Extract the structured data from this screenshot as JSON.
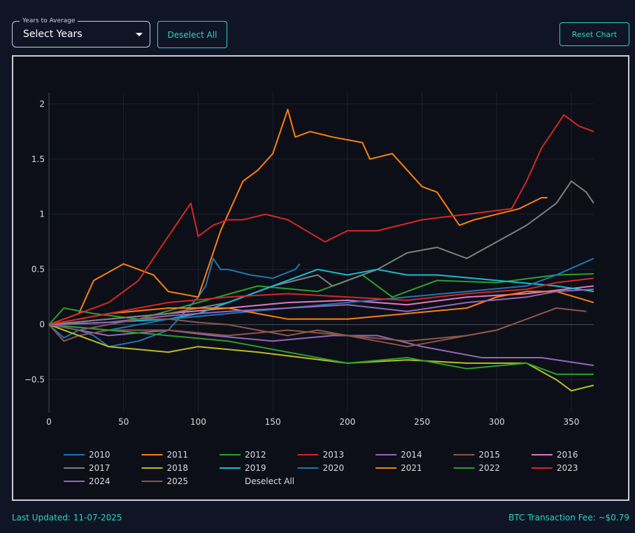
{
  "controls": {
    "years_label": "Years to Average",
    "years_value": "Select Years",
    "deselect_all": "Deselect All",
    "reset_chart": "Reset Chart"
  },
  "footer": {
    "last_updated_label": "Last Updated:",
    "last_updated_value": "11-07-2025",
    "fee_label": "BTC Transaction Fee:",
    "fee_value": "~$0.79"
  },
  "chart_data": {
    "type": "line",
    "title": "",
    "xlabel": "",
    "ylabel": "",
    "xlim": [
      0,
      365
    ],
    "ylim": [
      -0.8,
      2.1
    ],
    "x_ticks": [
      0,
      50,
      100,
      150,
      200,
      250,
      300,
      350
    ],
    "y_ticks": [
      -0.5,
      0,
      0.5,
      1,
      1.5,
      2
    ],
    "y_tick_labels": [
      "−0.5",
      "0",
      "0.5",
      "1",
      "1.5",
      "2"
    ],
    "grid": true,
    "legend_position": "bottom",
    "legend_extra": "Deselect All",
    "series": [
      {
        "name": "2010",
        "color": "#1f77b4",
        "x": [
          0,
          10,
          20,
          30,
          40,
          60,
          80,
          100,
          105,
          110,
          115,
          120,
          135,
          150,
          165,
          168
        ],
        "y": [
          0,
          -0.12,
          -0.05,
          -0.1,
          -0.2,
          -0.15,
          -0.05,
          0.25,
          0.35,
          0.6,
          0.5,
          0.5,
          0.45,
          0.42,
          0.5,
          0.55
        ]
      },
      {
        "name": "2011",
        "color": "#ff7f0e",
        "x": [
          0,
          20,
          30,
          50,
          60,
          70,
          80,
          100,
          115,
          130,
          140,
          150,
          160,
          165,
          175,
          190,
          210,
          215,
          230,
          240,
          250,
          260,
          275,
          285,
          300,
          315,
          330,
          334
        ],
        "y": [
          0,
          0.1,
          0.4,
          0.55,
          0.5,
          0.45,
          0.3,
          0.25,
          0.85,
          1.3,
          1.4,
          1.55,
          1.95,
          1.7,
          1.75,
          1.7,
          1.65,
          1.5,
          1.55,
          1.4,
          1.25,
          1.2,
          0.9,
          0.95,
          1.0,
          1.05,
          1.15,
          1.15
        ]
      },
      {
        "name": "2012",
        "color": "#2ca02c",
        "x": [
          0,
          10,
          30,
          60,
          100,
          140,
          180,
          210,
          230,
          260,
          300,
          340,
          365
        ],
        "y": [
          0,
          0.15,
          0.1,
          0.05,
          0.2,
          0.35,
          0.3,
          0.45,
          0.25,
          0.4,
          0.38,
          0.45,
          0.46
        ]
      },
      {
        "name": "2013",
        "color": "#d62728",
        "x": [
          0,
          20,
          40,
          60,
          80,
          95,
          100,
          110,
          120,
          130,
          145,
          160,
          185,
          200,
          220,
          250,
          280,
          310,
          320,
          330,
          345,
          355,
          365
        ],
        "y": [
          0,
          0.1,
          0.2,
          0.4,
          0.8,
          1.1,
          0.8,
          0.9,
          0.95,
          0.95,
          1.0,
          0.95,
          0.75,
          0.85,
          0.85,
          0.95,
          1.0,
          1.05,
          1.3,
          1.6,
          1.9,
          1.8,
          1.75
        ]
      },
      {
        "name": "2014",
        "color": "#9467bd",
        "x": [
          0,
          40,
          80,
          110,
          150,
          190,
          220,
          250,
          290,
          330,
          365
        ],
        "y": [
          0,
          -0.1,
          -0.05,
          -0.1,
          -0.15,
          -0.1,
          -0.1,
          -0.2,
          -0.3,
          -0.3,
          -0.37
        ]
      },
      {
        "name": "2015",
        "color": "#8c564b",
        "x": [
          0,
          10,
          20,
          40,
          80,
          120,
          160,
          200,
          240,
          280,
          300,
          320,
          340,
          360
        ],
        "y": [
          0,
          -0.15,
          -0.1,
          -0.05,
          -0.05,
          -0.1,
          -0.05,
          -0.1,
          -0.15,
          -0.1,
          -0.05,
          0.05,
          0.15,
          0.12
        ]
      },
      {
        "name": "2016",
        "color": "#e377c2",
        "x": [
          0,
          40,
          80,
          120,
          160,
          200,
          240,
          280,
          320,
          365
        ],
        "y": [
          0,
          0.05,
          0.1,
          0.15,
          0.2,
          0.22,
          0.18,
          0.25,
          0.28,
          0.35
        ]
      },
      {
        "name": "2017",
        "color": "#7f7f7f",
        "x": [
          0,
          40,
          80,
          120,
          150,
          180,
          190,
          200,
          220,
          240,
          260,
          280,
          300,
          320,
          340,
          350,
          360,
          365
        ],
        "y": [
          0,
          0.05,
          0.1,
          0.2,
          0.35,
          0.45,
          0.35,
          0.4,
          0.5,
          0.65,
          0.7,
          0.6,
          0.75,
          0.9,
          1.1,
          1.3,
          1.2,
          1.1
        ]
      },
      {
        "name": "2018",
        "color": "#bcbd22",
        "x": [
          0,
          20,
          40,
          80,
          100,
          140,
          170,
          200,
          240,
          280,
          320,
          340,
          350,
          365
        ],
        "y": [
          0,
          -0.1,
          -0.2,
          -0.25,
          -0.2,
          -0.25,
          -0.3,
          -0.35,
          -0.32,
          -0.35,
          -0.35,
          -0.5,
          -0.6,
          -0.55
        ]
      },
      {
        "name": "2019",
        "color": "#17becf",
        "x": [
          0,
          40,
          80,
          100,
          120,
          140,
          160,
          180,
          200,
          220,
          240,
          260,
          300,
          340,
          365
        ],
        "y": [
          0,
          0.02,
          0.05,
          0.1,
          0.2,
          0.3,
          0.4,
          0.5,
          0.45,
          0.5,
          0.45,
          0.45,
          0.4,
          0.35,
          0.3
        ]
      },
      {
        "name": "2020",
        "color": "#1f77b4",
        "x": [
          0,
          40,
          80,
          120,
          160,
          200,
          240,
          280,
          320,
          340,
          365
        ],
        "y": [
          0,
          -0.05,
          0.05,
          0.1,
          0.15,
          0.2,
          0.25,
          0.3,
          0.35,
          0.45,
          0.6
        ]
      },
      {
        "name": "2021",
        "color": "#ff7f0e",
        "x": [
          0,
          40,
          80,
          120,
          160,
          200,
          240,
          280,
          300,
          320,
          340,
          365
        ],
        "y": [
          0,
          0.1,
          0.15,
          0.15,
          0.05,
          0.05,
          0.1,
          0.15,
          0.25,
          0.3,
          0.3,
          0.2
        ]
      },
      {
        "name": "2022",
        "color": "#2ca02c",
        "x": [
          0,
          40,
          80,
          120,
          160,
          200,
          240,
          280,
          320,
          340,
          365
        ],
        "y": [
          0,
          -0.05,
          -0.1,
          -0.15,
          -0.25,
          -0.35,
          -0.3,
          -0.4,
          -0.35,
          -0.45,
          -0.45
        ]
      },
      {
        "name": "2023",
        "color": "#d62728",
        "x": [
          0,
          40,
          80,
          120,
          160,
          200,
          240,
          280,
          320,
          340,
          365
        ],
        "y": [
          0,
          0.1,
          0.2,
          0.25,
          0.28,
          0.25,
          0.22,
          0.28,
          0.32,
          0.38,
          0.42
        ]
      },
      {
        "name": "2024",
        "color": "#9467bd",
        "x": [
          0,
          40,
          80,
          120,
          160,
          200,
          240,
          280,
          320,
          340,
          365
        ],
        "y": [
          0,
          0.02,
          0.08,
          0.12,
          0.15,
          0.18,
          0.12,
          0.2,
          0.25,
          0.3,
          0.32
        ]
      },
      {
        "name": "2025",
        "color": "#8c564b",
        "x": [
          0,
          20,
          40,
          60,
          80,
          100,
          120,
          140,
          160,
          180,
          200,
          220,
          240,
          260,
          280,
          300,
          310
        ],
        "y": [
          0,
          -0.05,
          0.0,
          0.05,
          0.05,
          0.02,
          0.0,
          -0.05,
          -0.1,
          -0.05,
          -0.1,
          -0.15,
          -0.2,
          -0.15,
          -0.1,
          -0.05,
          0.0
        ]
      }
    ]
  }
}
